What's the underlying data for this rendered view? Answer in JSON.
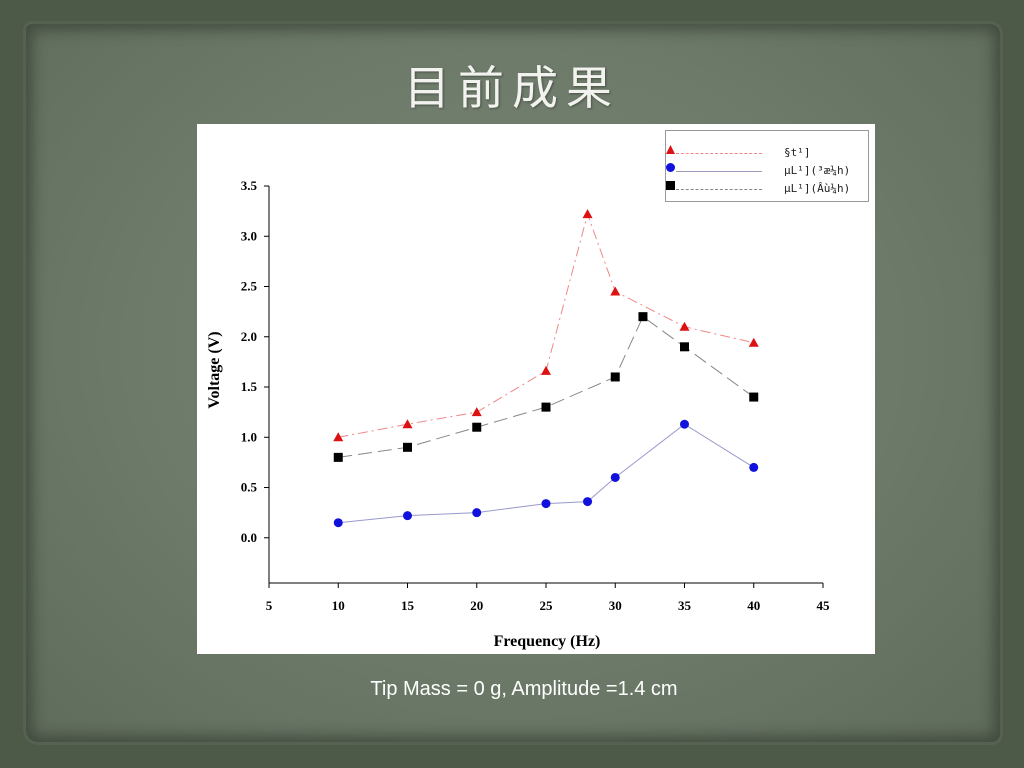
{
  "slide": {
    "title": "目前成果",
    "caption": "Tip Mass = 0 g, Amplitude =1.4 cm"
  },
  "chart_data": {
    "type": "line",
    "title": "",
    "xlabel": "Frequency (Hz)",
    "ylabel": "Voltage (V)",
    "xlim": [
      5,
      45
    ],
    "ylim": [
      -0.45,
      3.5
    ],
    "xticks": [
      5,
      10,
      15,
      20,
      25,
      30,
      35,
      40,
      45
    ],
    "yticks": [
      "0.0",
      "0.5",
      "1.0",
      "1.5",
      "2.0",
      "2.5",
      "3.0",
      "3.5"
    ],
    "grid": false,
    "legend_position": "top-right",
    "series": [
      {
        "name": "§t¹]",
        "color": "#dd1111",
        "marker": "triangle",
        "line_style": "dash-dot",
        "x": [
          10,
          15,
          20,
          25,
          28,
          30,
          35,
          40
        ],
        "y": [
          1.0,
          1.13,
          1.25,
          1.66,
          3.22,
          2.45,
          2.1,
          1.94
        ]
      },
      {
        "name": "µL¹](³æ¼h)",
        "color": "#1111dd",
        "marker": "circle",
        "line_style": "solid",
        "x": [
          10,
          15,
          20,
          25,
          28,
          30,
          35,
          40
        ],
        "y": [
          0.15,
          0.22,
          0.25,
          0.34,
          0.36,
          0.6,
          1.13,
          0.7
        ]
      },
      {
        "name": "µL¹](Âù¼h)",
        "color": "#000000",
        "marker": "square",
        "line_style": "long-dash",
        "x": [
          10,
          15,
          20,
          25,
          30,
          32,
          35,
          40
        ],
        "y": [
          0.8,
          0.9,
          1.1,
          1.3,
          1.6,
          2.2,
          1.9,
          1.4
        ]
      }
    ]
  }
}
